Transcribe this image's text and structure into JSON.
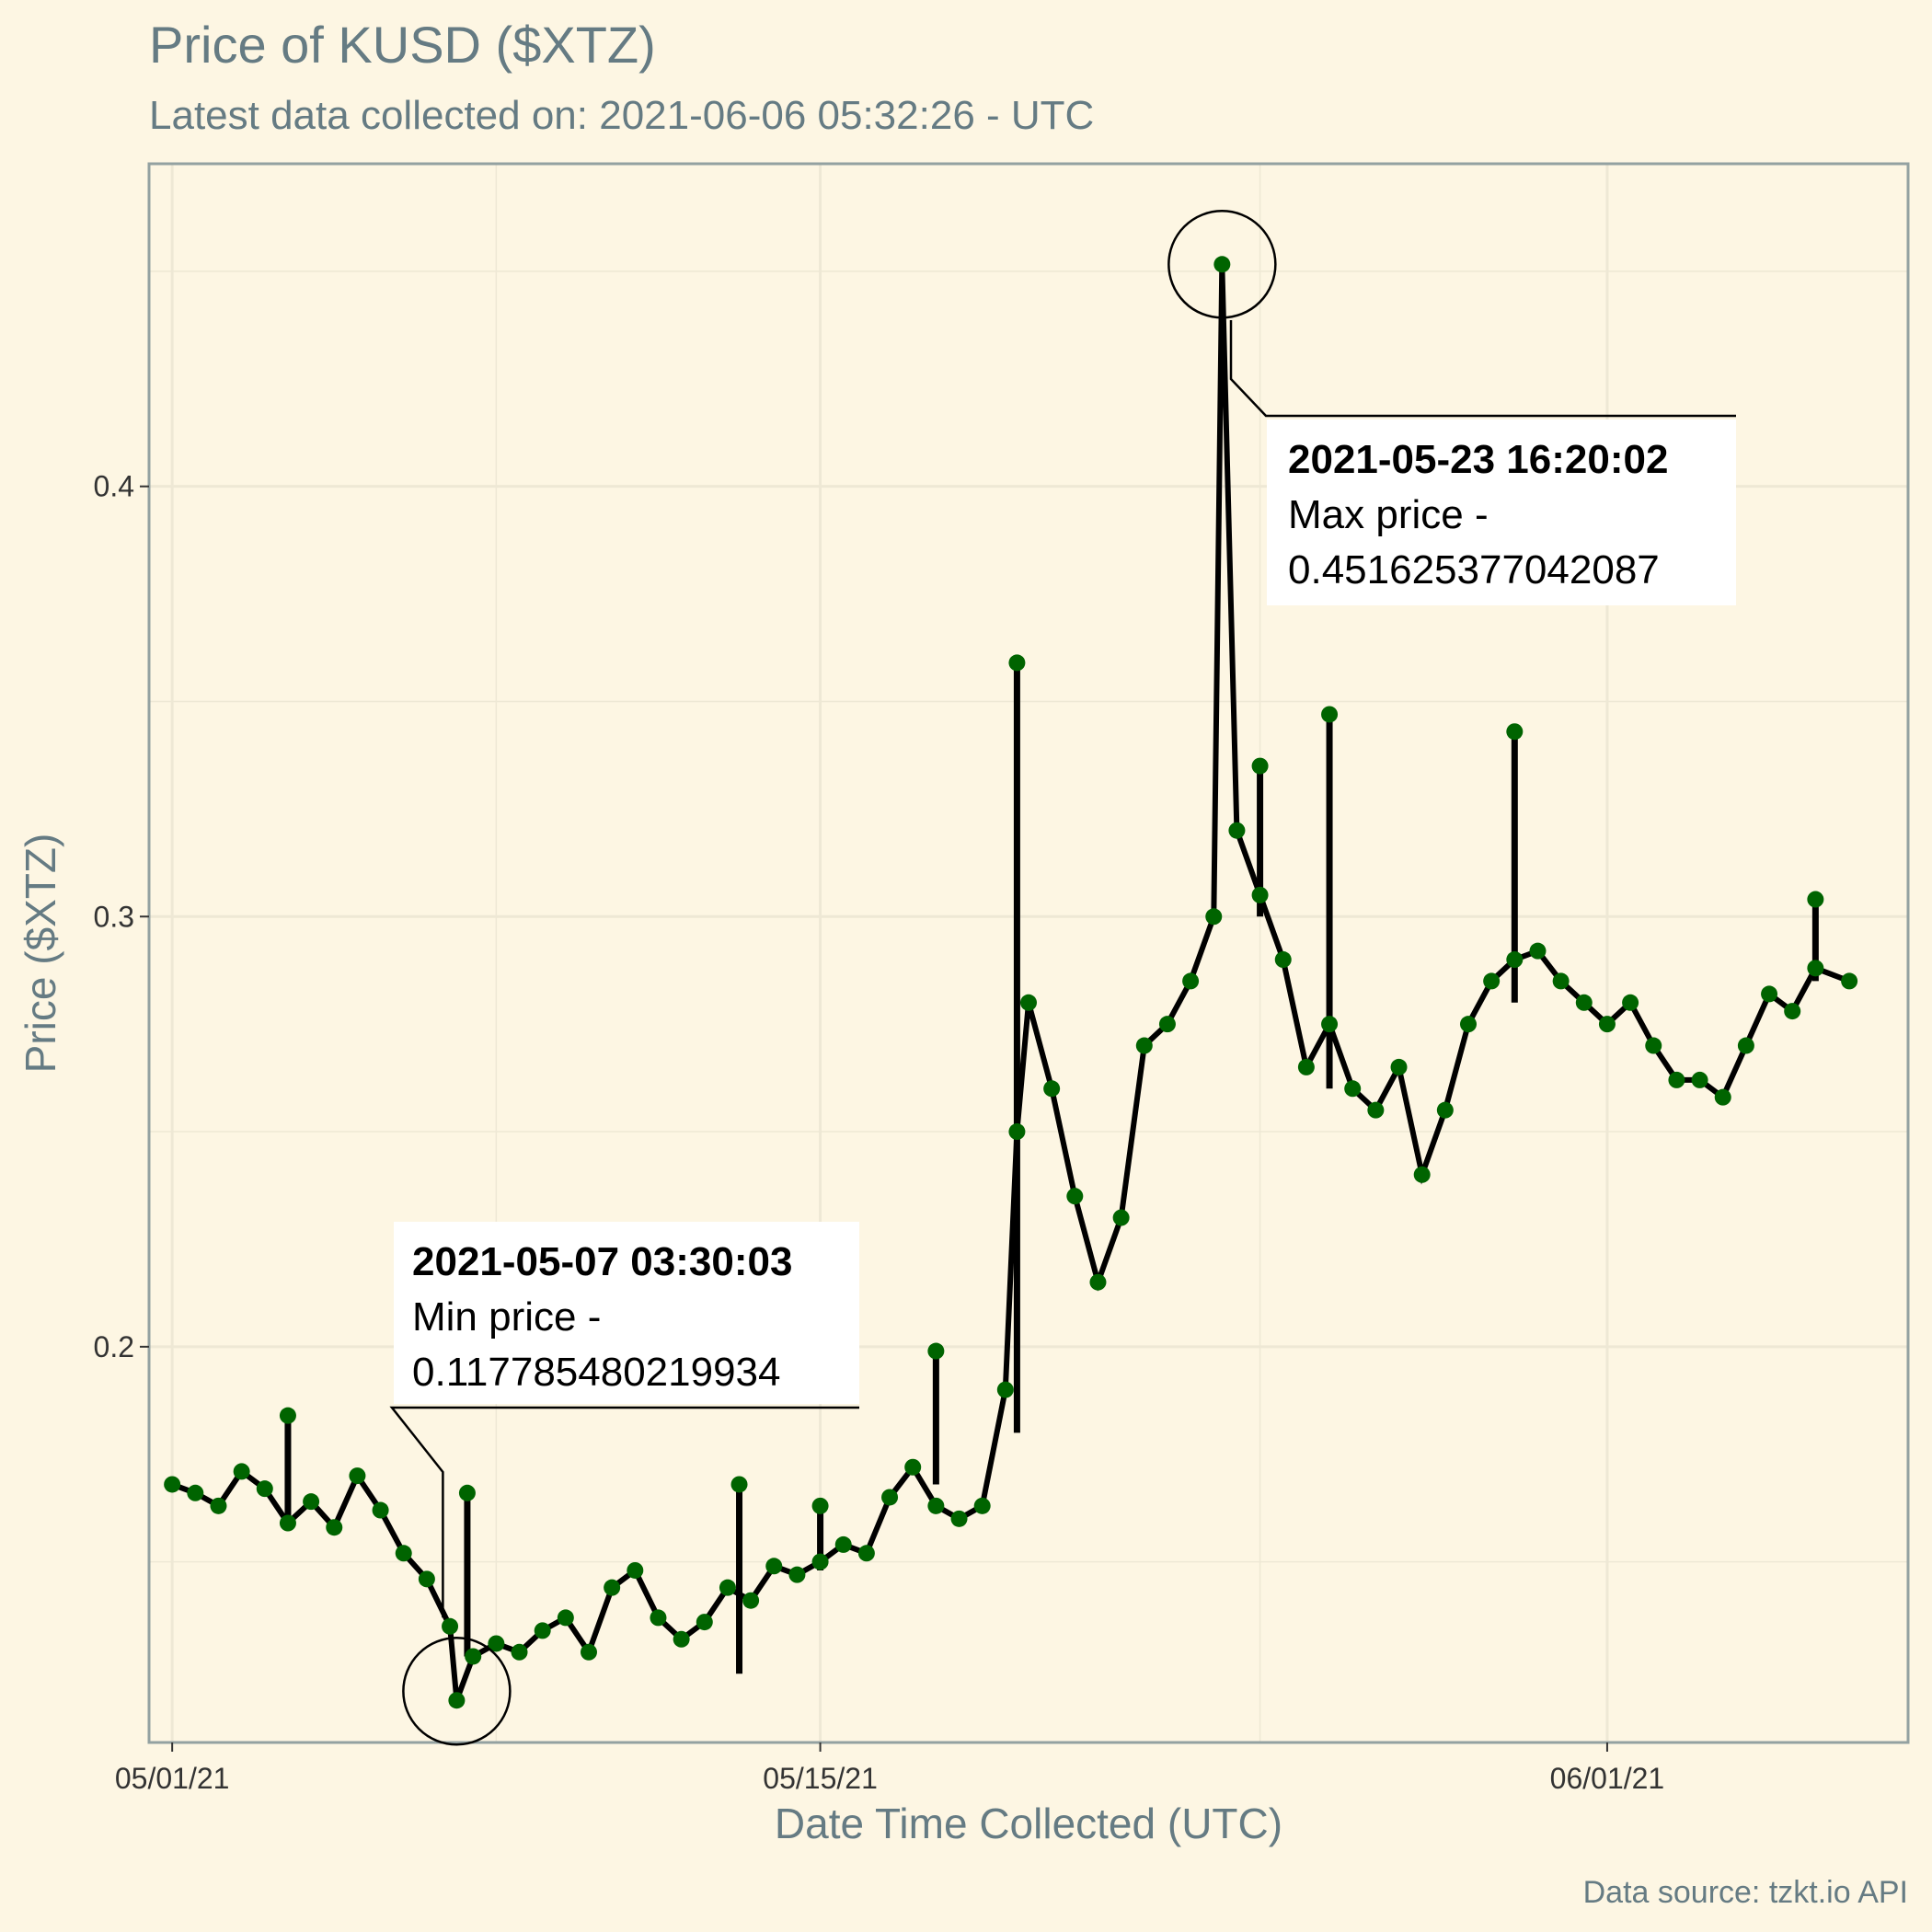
{
  "colors": {
    "background": "#fdf6e3",
    "panel_border": "#93a1a1",
    "grid": "#eee8d5",
    "point": "#006400",
    "segment": "#000000",
    "text": "#657b83"
  },
  "chart_data": {
    "type": "scatter",
    "title": "Price of KUSD ($XTZ)",
    "subtitle": "Latest data collected on: 2021-06-06 05:32:26  - UTC",
    "xlabel": "Date Time Collected (UTC)",
    "ylabel": "Price ($XTZ)",
    "caption": "Data source: tzkt.io API",
    "x_ticks": [
      "05/01/21",
      "05/15/21",
      "06/01/21"
    ],
    "y_ticks": [
      "0.2",
      "0.3",
      "0.4"
    ],
    "xlim": [
      "2021-04-30 12:00",
      "2021-06-07 12:00"
    ],
    "ylim": [
      0.108,
      0.475
    ],
    "grid": true,
    "series": [
      {
        "points": [
          [
            "2021-05-01 00:00",
            0.168
          ],
          [
            "2021-05-01 12:00",
            0.166
          ],
          [
            "2021-05-02 00:00",
            0.163
          ],
          [
            "2021-05-02 12:00",
            0.171
          ],
          [
            "2021-05-03 00:00",
            0.167
          ],
          [
            "2021-05-03 12:00",
            0.159
          ],
          [
            "2021-05-04 00:00",
            0.164
          ],
          [
            "2021-05-04 12:00",
            0.158
          ],
          [
            "2021-05-05 00:00",
            0.17
          ],
          [
            "2021-05-05 12:00",
            0.162
          ],
          [
            "2021-05-06 00:00",
            0.152
          ],
          [
            "2021-05-06 12:00",
            0.146
          ],
          [
            "2021-05-07 00:00",
            0.135
          ],
          [
            "2021-05-07 03:30",
            0.117785480219934
          ],
          [
            "2021-05-07 12:00",
            0.128
          ],
          [
            "2021-05-08 00:00",
            0.131
          ],
          [
            "2021-05-08 12:00",
            0.129
          ],
          [
            "2021-05-09 00:00",
            0.134
          ],
          [
            "2021-05-09 12:00",
            0.137
          ],
          [
            "2021-05-10 00:00",
            0.129
          ],
          [
            "2021-05-10 12:00",
            0.144
          ],
          [
            "2021-05-11 00:00",
            0.148
          ],
          [
            "2021-05-11 12:00",
            0.137
          ],
          [
            "2021-05-12 00:00",
            0.132
          ],
          [
            "2021-05-12 12:00",
            0.136
          ],
          [
            "2021-05-13 00:00",
            0.144
          ],
          [
            "2021-05-13 12:00",
            0.141
          ],
          [
            "2021-05-14 00:00",
            0.149
          ],
          [
            "2021-05-14 12:00",
            0.147
          ],
          [
            "2021-05-15 00:00",
            0.15
          ],
          [
            "2021-05-15 12:00",
            0.154
          ],
          [
            "2021-05-16 00:00",
            0.152
          ],
          [
            "2021-05-16 12:00",
            0.165
          ],
          [
            "2021-05-17 00:00",
            0.172
          ],
          [
            "2021-05-17 12:00",
            0.163
          ],
          [
            "2021-05-18 00:00",
            0.16
          ],
          [
            "2021-05-18 12:00",
            0.163
          ],
          [
            "2021-05-19 00:00",
            0.19
          ],
          [
            "2021-05-19 06:00",
            0.25
          ],
          [
            "2021-05-19 12:00",
            0.28
          ],
          [
            "2021-05-20 00:00",
            0.26
          ],
          [
            "2021-05-20 12:00",
            0.235
          ],
          [
            "2021-05-21 00:00",
            0.215
          ],
          [
            "2021-05-21 12:00",
            0.23
          ],
          [
            "2021-05-22 00:00",
            0.27
          ],
          [
            "2021-05-22 12:00",
            0.275
          ],
          [
            "2021-05-23 00:00",
            0.285
          ],
          [
            "2021-05-23 12:00",
            0.3
          ],
          [
            "2021-05-23 16:20",
            0.451625377042087
          ],
          [
            "2021-05-24 00:00",
            0.32
          ],
          [
            "2021-05-24 12:00",
            0.305
          ],
          [
            "2021-05-25 00:00",
            0.29
          ],
          [
            "2021-05-25 12:00",
            0.265
          ],
          [
            "2021-05-26 00:00",
            0.275
          ],
          [
            "2021-05-26 12:00",
            0.26
          ],
          [
            "2021-05-27 00:00",
            0.255
          ],
          [
            "2021-05-27 12:00",
            0.265
          ],
          [
            "2021-05-28 00:00",
            0.24
          ],
          [
            "2021-05-28 12:00",
            0.255
          ],
          [
            "2021-05-29 00:00",
            0.275
          ],
          [
            "2021-05-29 12:00",
            0.285
          ],
          [
            "2021-05-30 00:00",
            0.29
          ],
          [
            "2021-05-30 12:00",
            0.292
          ],
          [
            "2021-05-31 00:00",
            0.285
          ],
          [
            "2021-05-31 12:00",
            0.28
          ],
          [
            "2021-06-01 00:00",
            0.275
          ],
          [
            "2021-06-01 12:00",
            0.28
          ],
          [
            "2021-06-02 00:00",
            0.27
          ],
          [
            "2021-06-02 12:00",
            0.262
          ],
          [
            "2021-06-03 00:00",
            0.262
          ],
          [
            "2021-06-03 12:00",
            0.258
          ],
          [
            "2021-06-04 00:00",
            0.27
          ],
          [
            "2021-06-04 12:00",
            0.282
          ],
          [
            "2021-06-05 00:00",
            0.278
          ],
          [
            "2021-06-05 12:00",
            0.288
          ],
          [
            "2021-06-06 05:32",
            0.285
          ]
        ],
        "spikes": [
          [
            "2021-05-03 12:00",
            0.158,
            0.184
          ],
          [
            "2021-05-07 09:00",
            0.128,
            0.166
          ],
          [
            "2021-05-13 06:00",
            0.124,
            0.168
          ],
          [
            "2021-05-15 00:00",
            0.148,
            0.163
          ],
          [
            "2021-05-17 12:00",
            0.168,
            0.199
          ],
          [
            "2021-05-19 06:00",
            0.18,
            0.359
          ],
          [
            "2021-05-24 12:00",
            0.3,
            0.335
          ],
          [
            "2021-05-26 00:00",
            0.26,
            0.347
          ],
          [
            "2021-05-30 00:00",
            0.28,
            0.343
          ],
          [
            "2021-06-05 12:00",
            0.285,
            0.304
          ]
        ]
      }
    ],
    "annotations": [
      {
        "kind": "min",
        "time": "2021-05-07 03:30:03",
        "value": 0.117785480219934,
        "title": "2021-05-07 03:30:03",
        "line1": "Min price -",
        "line2": "0.117785480219934"
      },
      {
        "kind": "max",
        "time": "2021-05-23 16:20:02",
        "value": 0.451625377042087,
        "title": "2021-05-23 16:20:02",
        "line1": "Max price -",
        "line2": "0.451625377042087"
      }
    ]
  }
}
